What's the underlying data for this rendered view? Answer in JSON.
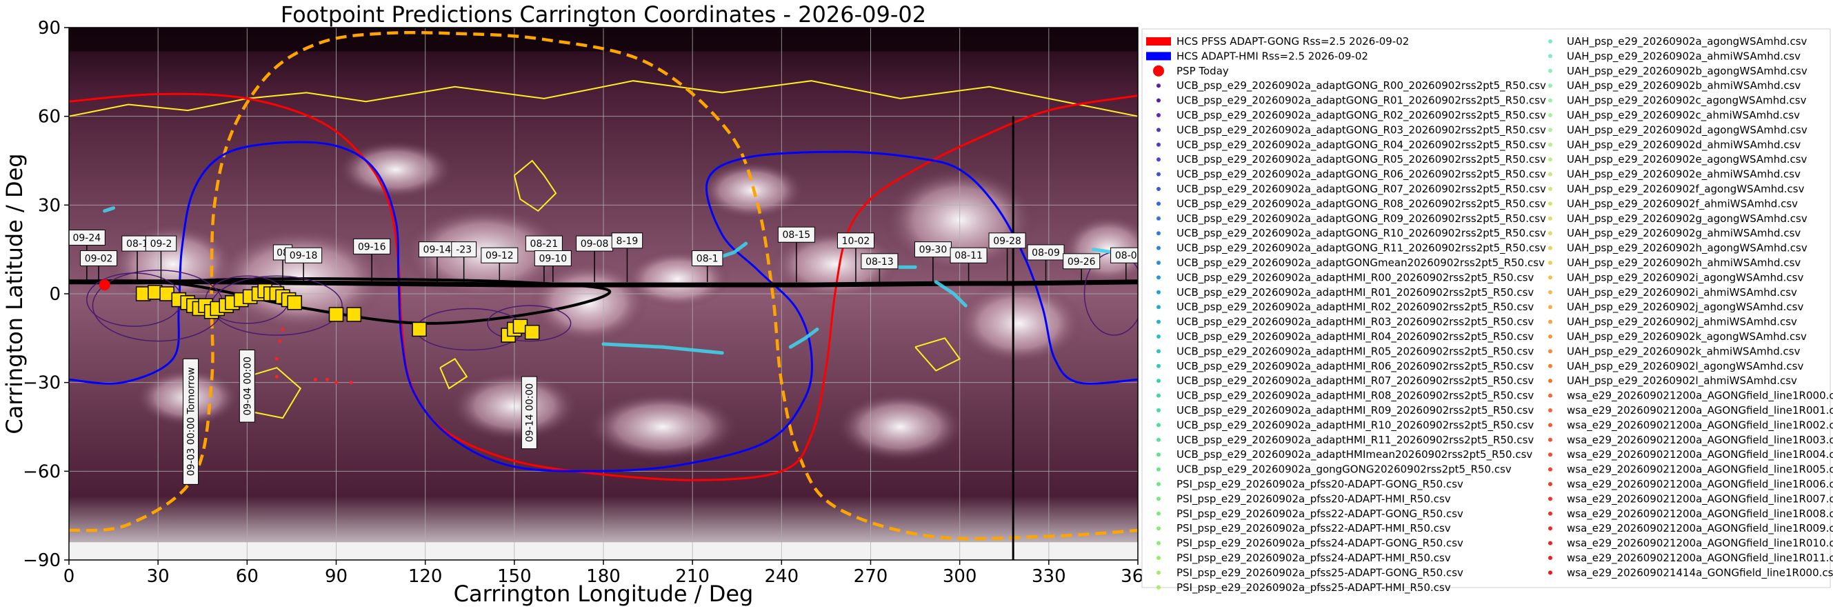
{
  "chart_data": {
    "type": "scatter",
    "title": "Footpoint Predictions Carrington Coordinates - 2026-09-02",
    "xlabel": "Carrington Longitude / Deg",
    "ylabel": "Carrington Latitude / Deg",
    "xlim": [
      0,
      360
    ],
    "ylim": [
      -90,
      90
    ],
    "xticks": [
      0,
      30,
      60,
      90,
      120,
      150,
      180,
      210,
      240,
      270,
      300,
      330,
      360
    ],
    "yticks": [
      -90,
      -60,
      -30,
      0,
      30,
      60,
      90
    ],
    "xtick_labels": [
      "0",
      "30",
      "60",
      "90",
      "120",
      "150",
      "180",
      "210",
      "240",
      "270",
      "300",
      "330",
      "360"
    ],
    "ytick_labels": [
      "−90",
      "−60",
      "−30",
      "0",
      "30",
      "60",
      "90"
    ],
    "grid": true,
    "legend_placement": "right, outside plot, two columns",
    "colors": {
      "hcs_gong": "#ff0000",
      "hcs_hmi": "#0000ff",
      "psp_today": "#ff0000",
      "orbit_track": "#000000",
      "coronal_hole_contour": "#ffee22",
      "footpoint_box": "#ffdd00",
      "background_low": "#2a0a1e",
      "background_high": "#ffffff",
      "dashed_neutral_line": "#ffa500"
    },
    "hcs_adapt_gong": [
      [
        0,
        65
      ],
      [
        30,
        67.5
      ],
      [
        60,
        66
      ],
      [
        85,
        58
      ],
      [
        100,
        45
      ],
      [
        108,
        30
      ],
      [
        111,
        10
      ],
      [
        112,
        -10
      ],
      [
        115,
        -30
      ],
      [
        125,
        -45
      ],
      [
        145,
        -55
      ],
      [
        170,
        -60
      ],
      [
        210,
        -63
      ],
      [
        240,
        -60
      ],
      [
        250,
        -48
      ],
      [
        255,
        -25
      ],
      [
        258,
        0
      ],
      [
        262,
        20
      ],
      [
        270,
        32
      ],
      [
        285,
        42
      ],
      [
        305,
        52
      ],
      [
        330,
        62
      ],
      [
        360,
        67
      ]
    ],
    "hcs_adapt_hmi": [
      [
        0,
        -29
      ],
      [
        18,
        -30
      ],
      [
        35,
        -22
      ],
      [
        37,
        -5
      ],
      [
        38,
        15
      ],
      [
        42,
        35
      ],
      [
        52,
        47
      ],
      [
        70,
        51
      ],
      [
        90,
        50
      ],
      [
        103,
        42
      ],
      [
        110,
        25
      ],
      [
        111,
        5
      ],
      [
        112,
        -15
      ],
      [
        116,
        -33
      ],
      [
        128,
        -48
      ],
      [
        148,
        -58
      ],
      [
        175,
        -60
      ],
      [
        205,
        -58
      ],
      [
        235,
        -50
      ],
      [
        248,
        -35
      ],
      [
        250,
        -20
      ],
      [
        245,
        -5
      ],
      [
        232,
        8
      ],
      [
        220,
        20
      ],
      [
        215,
        38
      ],
      [
        228,
        46
      ],
      [
        260,
        48
      ],
      [
        285,
        46
      ],
      [
        300,
        42
      ],
      [
        312,
        30
      ],
      [
        322,
        12
      ],
      [
        328,
        -5
      ],
      [
        332,
        -22
      ],
      [
        340,
        -30
      ],
      [
        360,
        -29
      ]
    ],
    "neutral_line_dashed": [
      [
        0,
        -80
      ],
      [
        20,
        -78
      ],
      [
        42,
        -62
      ],
      [
        48,
        -30
      ],
      [
        48,
        0
      ],
      [
        49,
        30
      ],
      [
        55,
        55
      ],
      [
        68,
        75
      ],
      [
        85,
        85
      ],
      [
        105,
        88
      ],
      [
        130,
        88
      ],
      [
        160,
        86
      ],
      [
        195,
        78
      ],
      [
        222,
        55
      ],
      [
        232,
        30
      ],
      [
        237,
        0
      ],
      [
        240,
        -30
      ],
      [
        246,
        -55
      ],
      [
        258,
        -72
      ],
      [
        290,
        -82
      ],
      [
        330,
        -82
      ],
      [
        360,
        -80
      ]
    ],
    "orbit_track": [
      [
        0,
        4
      ],
      [
        50,
        4
      ],
      [
        100,
        3.5
      ],
      [
        150,
        3
      ],
      [
        200,
        3
      ],
      [
        250,
        3
      ],
      [
        300,
        3.5
      ],
      [
        318,
        3.5
      ],
      [
        360,
        4
      ]
    ],
    "orbit_track_loop": [
      [
        10,
        4
      ],
      [
        40,
        3
      ],
      [
        80,
        -5
      ],
      [
        120,
        -10
      ],
      [
        160,
        -6
      ],
      [
        182,
        1
      ],
      [
        150,
        4
      ],
      [
        100,
        5
      ],
      [
        60,
        5
      ],
      [
        30,
        4
      ]
    ],
    "psp_today": {
      "name": "PSP Today",
      "lon": 12,
      "lat": 3
    },
    "vertical_marker_lon": 318,
    "date_labels": [
      {
        "text": "09-24",
        "lon": 6,
        "lat": 19
      },
      {
        "text": "09-02",
        "lon": 10,
        "lat": 12
      },
      {
        "text": "08-1",
        "lon": 23,
        "lat": 17
      },
      {
        "text": "09-2",
        "lon": 31,
        "lat": 17
      },
      {
        "text": "08",
        "lon": 72,
        "lat": 14
      },
      {
        "text": "09-18",
        "lon": 79,
        "lat": 13
      },
      {
        "text": "09-16",
        "lon": 102,
        "lat": 16
      },
      {
        "text": "09-14",
        "lon": 124,
        "lat": 15
      },
      {
        "text": "-23",
        "lon": 133,
        "lat": 15
      },
      {
        "text": "09-12",
        "lon": 145,
        "lat": 13
      },
      {
        "text": "08-21",
        "lon": 160,
        "lat": 17
      },
      {
        "text": "09-10",
        "lon": 163,
        "lat": 12
      },
      {
        "text": "09-08",
        "lon": 177,
        "lat": 17
      },
      {
        "text": "8-19",
        "lon": 188,
        "lat": 18
      },
      {
        "text": "08-1",
        "lon": 215,
        "lat": 12
      },
      {
        "text": "08-15",
        "lon": 245,
        "lat": 20
      },
      {
        "text": "10-02",
        "lon": 265,
        "lat": 18
      },
      {
        "text": "08-13",
        "lon": 273,
        "lat": 11
      },
      {
        "text": "09-30",
        "lon": 291,
        "lat": 15
      },
      {
        "text": "08-11",
        "lon": 303,
        "lat": 13
      },
      {
        "text": "09-28",
        "lon": 316,
        "lat": 18
      },
      {
        "text": "08-09",
        "lon": 329,
        "lat": 14
      },
      {
        "text": "09-26",
        "lon": 341,
        "lat": 11
      },
      {
        "text": "08-0",
        "lon": 356,
        "lat": 13
      }
    ],
    "vertical_date_labels": [
      {
        "text": "09-03 00:00 Tomorrow",
        "lon": 41,
        "lat": -22
      },
      {
        "text": "09-04 00:00",
        "lon": 60,
        "lat": -19
      },
      {
        "text": "09-14 00:00",
        "lon": 155,
        "lat": -28
      }
    ],
    "footpoint_boxes": [
      [
        25,
        0
      ],
      [
        29,
        0.5
      ],
      [
        33,
        0
      ],
      [
        37,
        -2
      ],
      [
        40,
        -3
      ],
      [
        42,
        -4
      ],
      [
        44,
        -5
      ],
      [
        46,
        -4
      ],
      [
        48,
        -6
      ],
      [
        50,
        -5
      ],
      [
        53,
        -4
      ],
      [
        55,
        -3
      ],
      [
        58,
        -2
      ],
      [
        61,
        -1
      ],
      [
        64,
        0
      ],
      [
        66,
        1
      ],
      [
        68,
        0
      ],
      [
        70,
        0
      ],
      [
        72,
        -1
      ],
      [
        74,
        -2
      ],
      [
        76,
        -3
      ],
      [
        90,
        -7
      ],
      [
        96,
        -7
      ],
      [
        118,
        -12
      ],
      [
        148,
        -14
      ],
      [
        150,
        -12
      ],
      [
        152,
        -11
      ],
      [
        156,
        -13
      ]
    ],
    "psp_footprints_red": [
      [
        72,
        -12
      ],
      [
        71,
        -16
      ],
      [
        70,
        -22
      ],
      [
        70,
        -28
      ],
      [
        83,
        -29
      ],
      [
        87,
        -29
      ],
      [
        90,
        -30
      ],
      [
        95,
        -30
      ]
    ],
    "legend_col1": [
      "HCS PFSS ADAPT-GONG Rss=2.5 2026-09-02",
      "HCS ADAPT-HMI Rss=2.5 2026-09-02",
      "PSP Today",
      "UCB_psp_e29_20260902a_adaptGONG_R00_20260902rss2pt5_R50.csv",
      "UCB_psp_e29_20260902a_adaptGONG_R01_20260902rss2pt5_R50.csv",
      "UCB_psp_e29_20260902a_adaptGONG_R02_20260902rss2pt5_R50.csv",
      "UCB_psp_e29_20260902a_adaptGONG_R03_20260902rss2pt5_R50.csv",
      "UCB_psp_e29_20260902a_adaptGONG_R04_20260902rss2pt5_R50.csv",
      "UCB_psp_e29_20260902a_adaptGONG_R05_20260902rss2pt5_R50.csv",
      "UCB_psp_e29_20260902a_adaptGONG_R06_20260902rss2pt5_R50.csv",
      "UCB_psp_e29_20260902a_adaptGONG_R07_20260902rss2pt5_R50.csv",
      "UCB_psp_e29_20260902a_adaptGONG_R08_20260902rss2pt5_R50.csv",
      "UCB_psp_e29_20260902a_adaptGONG_R09_20260902rss2pt5_R50.csv",
      "UCB_psp_e29_20260902a_adaptGONG_R10_20260902rss2pt5_R50.csv",
      "UCB_psp_e29_20260902a_adaptGONG_R11_20260902rss2pt5_R50.csv",
      "UCB_psp_e29_20260902a_adaptGONGmean20260902rss2pt5_R50.csv",
      "UCB_psp_e29_20260902a_adaptHMI_R00_20260902rss2pt5_R50.csv",
      "UCB_psp_e29_20260902a_adaptHMI_R01_20260902rss2pt5_R50.csv",
      "UCB_psp_e29_20260902a_adaptHMI_R02_20260902rss2pt5_R50.csv",
      "UCB_psp_e29_20260902a_adaptHMI_R03_20260902rss2pt5_R50.csv",
      "UCB_psp_e29_20260902a_adaptHMI_R04_20260902rss2pt5_R50.csv",
      "UCB_psp_e29_20260902a_adaptHMI_R05_20260902rss2pt5_R50.csv",
      "UCB_psp_e29_20260902a_adaptHMI_R06_20260902rss2pt5_R50.csv",
      "UCB_psp_e29_20260902a_adaptHMI_R07_20260902rss2pt5_R50.csv",
      "UCB_psp_e29_20260902a_adaptHMI_R08_20260902rss2pt5_R50.csv",
      "UCB_psp_e29_20260902a_adaptHMI_R09_20260902rss2pt5_R50.csv",
      "UCB_psp_e29_20260902a_adaptHMI_R10_20260902rss2pt5_R50.csv",
      "UCB_psp_e29_20260902a_adaptHMI_R11_20260902rss2pt5_R50.csv",
      "UCB_psp_e29_20260902a_adaptHMImean20260902rss2pt5_R50.csv",
      "UCB_psp_e29_20260902a_gongGONG20260902rss2pt5_R50.csv",
      "PSI_psp_e29_20260902a_pfss20-ADAPT-GONG_R50.csv",
      "PSI_psp_e29_20260902a_pfss20-ADAPT-HMI_R50.csv",
      "PSI_psp_e29_20260902a_pfss22-ADAPT-GONG_R50.csv",
      "PSI_psp_e29_20260902a_pfss22-ADAPT-HMI_R50.csv",
      "PSI_psp_e29_20260902a_pfss24-ADAPT-GONG_R50.csv",
      "PSI_psp_e29_20260902a_pfss24-ADAPT-HMI_R50.csv",
      "PSI_psp_e29_20260902a_pfss25-ADAPT-GONG_R50.csv",
      "PSI_psp_e29_20260902a_pfss25-ADAPT-HMI_R50.csv"
    ],
    "legend_col1_colors": [
      "#ff0000",
      "#0000ff",
      "#ff0000",
      "#5a1ab8",
      "#5a1ab8",
      "#5a25c4",
      "#5530cc",
      "#4a3ad4",
      "#4445dc",
      "#3e50e0",
      "#3a5ae4",
      "#3565e6",
      "#3070e8",
      "#2b7be8",
      "#2686e6",
      "#2290e4",
      "#1f98e0",
      "#1ea2da",
      "#1eacd4",
      "#20b5cd",
      "#24bec6",
      "#28c6bf",
      "#2dcdb8",
      "#33d4b0",
      "#3ad9a8",
      "#42dda1",
      "#4ae199",
      "#52e492",
      "#5ae78b",
      "#62e985",
      "#6aeb80",
      "#72ec7b",
      "#7aed77",
      "#82ee73",
      "#8aef70",
      "#92ef6d",
      "#9aef6a",
      "#a2ef68"
    ],
    "legend_col1_kinds": [
      "band",
      "band",
      "dot-large",
      "dot",
      "dot",
      "dot",
      "dot",
      "dot",
      "dot",
      "dot",
      "dot",
      "dot",
      "dot",
      "dot",
      "dot",
      "dot",
      "dot",
      "dot",
      "dot",
      "dot",
      "dot",
      "dot",
      "dot",
      "dot",
      "dot",
      "dot",
      "dot",
      "dot",
      "dot",
      "dot",
      "dot",
      "dot",
      "dot",
      "dot",
      "dot",
      "dot",
      "dot",
      "dot"
    ],
    "legend_col2": [
      "UAH_psp_e29_20260902a_agongWSAmhd.csv",
      "UAH_psp_e29_20260902a_ahmiWSAmhd.csv",
      "UAH_psp_e29_20260902b_agongWSAmhd.csv",
      "UAH_psp_e29_20260902b_ahmiWSAmhd.csv",
      "UAH_psp_e29_20260902c_agongWSAmhd.csv",
      "UAH_psp_e29_20260902c_ahmiWSAmhd.csv",
      "UAH_psp_e29_20260902d_agongWSAmhd.csv",
      "UAH_psp_e29_20260902d_ahmiWSAmhd.csv",
      "UAH_psp_e29_20260902e_agongWSAmhd.csv",
      "UAH_psp_e29_20260902e_ahmiWSAmhd.csv",
      "UAH_psp_e29_20260902f_agongWSAmhd.csv",
      "UAH_psp_e29_20260902f_ahmiWSAmhd.csv",
      "UAH_psp_e29_20260902g_agongWSAmhd.csv",
      "UAH_psp_e29_20260902g_ahmiWSAmhd.csv",
      "UAH_psp_e29_20260902h_agongWSAmhd.csv",
      "UAH_psp_e29_20260902h_ahmiWSAmhd.csv",
      "UAH_psp_e29_20260902i_agongWSAmhd.csv",
      "UAH_psp_e29_20260902i_ahmiWSAmhd.csv",
      "UAH_psp_e29_20260902j_agongWSAmhd.csv",
      "UAH_psp_e29_20260902j_ahmiWSAmhd.csv",
      "UAH_psp_e29_20260902k_agongWSAmhd.csv",
      "UAH_psp_e29_20260902k_ahmiWSAmhd.csv",
      "UAH_psp_e29_20260902l_agongWSAmhd.csv",
      "UAH_psp_e29_20260902l_ahmiWSAmhd.csv",
      "wsa_e29_202609021200a_AGONGfield_line1R000.csv",
      "wsa_e29_202609021200a_AGONGfield_line1R001.csv",
      "wsa_e29_202609021200a_AGONGfield_line1R002.csv",
      "wsa_e29_202609021200a_AGONGfield_line1R003.csv",
      "wsa_e29_202609021200a_AGONGfield_line1R004.csv",
      "wsa_e29_202609021200a_AGONGfield_line1R005.csv",
      "wsa_e29_202609021200a_AGONGfield_line1R006.csv",
      "wsa_e29_202609021200a_AGONGfield_line1R007.csv",
      "wsa_e29_202609021200a_AGONGfield_line1R008.csv",
      "wsa_e29_202609021200a_AGONGfield_line1R009.csv",
      "wsa_e29_202609021200a_AGONGfield_line1R010.csv",
      "wsa_e29_202609021200a_AGONGfield_line1R011.csv",
      "wsa_e29_202609021414a_GONGfield_line1R000.csv"
    ],
    "legend_col2_colors": [
      "#7ee8c8",
      "#86ebc0",
      "#8eedb8",
      "#96efb0",
      "#9ef0a8",
      "#a6f1a0",
      "#aef198",
      "#b6f090",
      "#beee88",
      "#c6ec80",
      "#cee978",
      "#d6e570",
      "#dde06a",
      "#e4da64",
      "#ead35e",
      "#f0cb58",
      "#f4c252",
      "#f6b84c",
      "#f8ad46",
      "#f9a240",
      "#f9963a",
      "#f98a34",
      "#f87e2e",
      "#f77228",
      "#f66a3a",
      "#f66238",
      "#f55a36",
      "#f45234",
      "#f34a32",
      "#f24230",
      "#f13a2e",
      "#f0342c",
      "#ef2e2a",
      "#ee2828",
      "#ed2226",
      "#ec1c24",
      "#eb1622"
    ]
  }
}
